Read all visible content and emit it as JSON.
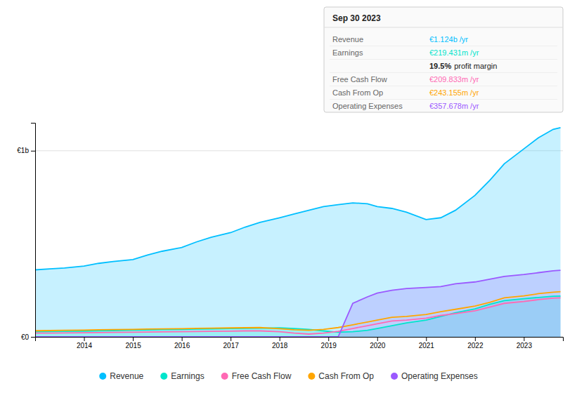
{
  "chart_data": {
    "type": "area",
    "x": [
      2013.0,
      2013.3,
      2013.6,
      2014.0,
      2014.3,
      2014.6,
      2015.0,
      2015.3,
      2015.6,
      2016.0,
      2016.3,
      2016.6,
      2017.0,
      2017.3,
      2017.6,
      2018.0,
      2018.3,
      2018.6,
      2018.9,
      2019.2,
      2019.5,
      2019.8,
      2020.0,
      2020.3,
      2020.6,
      2021.0,
      2021.3,
      2021.6,
      2022.0,
      2022.3,
      2022.6,
      2023.0,
      2023.3,
      2023.6,
      2023.75
    ],
    "series": [
      {
        "name": "Revenue",
        "type": "area",
        "color": "#00bfff",
        "values": [
          0.36,
          0.365,
          0.37,
          0.38,
          0.395,
          0.405,
          0.415,
          0.44,
          0.46,
          0.48,
          0.51,
          0.535,
          0.56,
          0.59,
          0.615,
          0.64,
          0.66,
          0.68,
          0.7,
          0.71,
          0.72,
          0.715,
          0.7,
          0.69,
          0.67,
          0.63,
          0.64,
          0.68,
          0.76,
          0.84,
          0.93,
          1.01,
          1.07,
          1.115,
          1.124
        ]
      },
      {
        "name": "Earnings",
        "type": "area",
        "color": "#00e5cc",
        "values": [
          0.028,
          0.029,
          0.03,
          0.031,
          0.033,
          0.034,
          0.036,
          0.037,
          0.039,
          0.04,
          0.042,
          0.043,
          0.045,
          0.046,
          0.047,
          0.048,
          0.045,
          0.04,
          0.032,
          0.025,
          0.028,
          0.035,
          0.045,
          0.06,
          0.075,
          0.09,
          0.11,
          0.13,
          0.15,
          0.175,
          0.195,
          0.205,
          0.212,
          0.218,
          0.219
        ]
      },
      {
        "name": "Free Cash Flow",
        "type": "line",
        "color": "#ff69b4",
        "values": [
          0.02,
          0.02,
          0.021,
          0.022,
          0.023,
          0.024,
          0.025,
          0.026,
          0.027,
          0.028,
          0.029,
          0.03,
          0.031,
          0.032,
          0.032,
          0.028,
          0.02,
          0.015,
          0.02,
          0.03,
          0.045,
          0.06,
          0.07,
          0.085,
          0.09,
          0.1,
          0.115,
          0.125,
          0.14,
          0.16,
          0.18,
          0.19,
          0.2,
          0.208,
          0.21
        ]
      },
      {
        "name": "Cash From Op",
        "type": "line",
        "color": "#ffa500",
        "values": [
          0.033,
          0.034,
          0.035,
          0.036,
          0.038,
          0.039,
          0.04,
          0.042,
          0.043,
          0.044,
          0.046,
          0.047,
          0.048,
          0.049,
          0.05,
          0.044,
          0.038,
          0.035,
          0.04,
          0.05,
          0.065,
          0.08,
          0.09,
          0.105,
          0.11,
          0.12,
          0.135,
          0.148,
          0.165,
          0.185,
          0.21,
          0.22,
          0.232,
          0.24,
          0.243
        ]
      },
      {
        "name": "Operating Expenses",
        "type": "area",
        "color": "#9b59ff",
        "values": [
          0.0,
          0.0,
          0.0,
          0.0,
          0.0,
          0.0,
          0.0,
          0.0,
          0.0,
          0.0,
          0.0,
          0.0,
          0.0,
          0.0,
          0.0,
          0.0,
          0.0,
          0.0,
          0.0,
          0.0,
          0.18,
          0.215,
          0.235,
          0.25,
          0.26,
          0.265,
          0.27,
          0.285,
          0.295,
          0.31,
          0.325,
          0.335,
          0.345,
          0.355,
          0.358
        ]
      }
    ],
    "xlim": [
      2013.0,
      2023.8
    ],
    "xticks": [
      2014,
      2015,
      2016,
      2017,
      2018,
      2019,
      2020,
      2021,
      2022,
      2023
    ],
    "ylim": [
      0,
      1.15
    ],
    "yticks": [
      {
        "value": 0,
        "label": "€0"
      },
      {
        "value": 1,
        "label": "€1b"
      }
    ],
    "grid": true,
    "legend": "bottom",
    "annotations": {
      "title": "Sep 30 2023",
      "rows": [
        {
          "label": "Revenue",
          "value": "€1.124b /yr",
          "color": "#00bfff"
        },
        {
          "label": "Earnings",
          "value": "€219.431m /yr",
          "color": "#00e5cc"
        },
        {
          "value": "19.5%",
          "rest": "profit margin"
        },
        {
          "label": "Free Cash Flow",
          "value": "€209.833m /yr",
          "color": "#ff69b4"
        },
        {
          "label": "Cash From Op",
          "value": "€243.155m /yr",
          "color": "#ffa500"
        },
        {
          "label": "Operating Expenses",
          "value": "€357.678m /yr",
          "color": "#9b59ff"
        }
      ]
    }
  }
}
